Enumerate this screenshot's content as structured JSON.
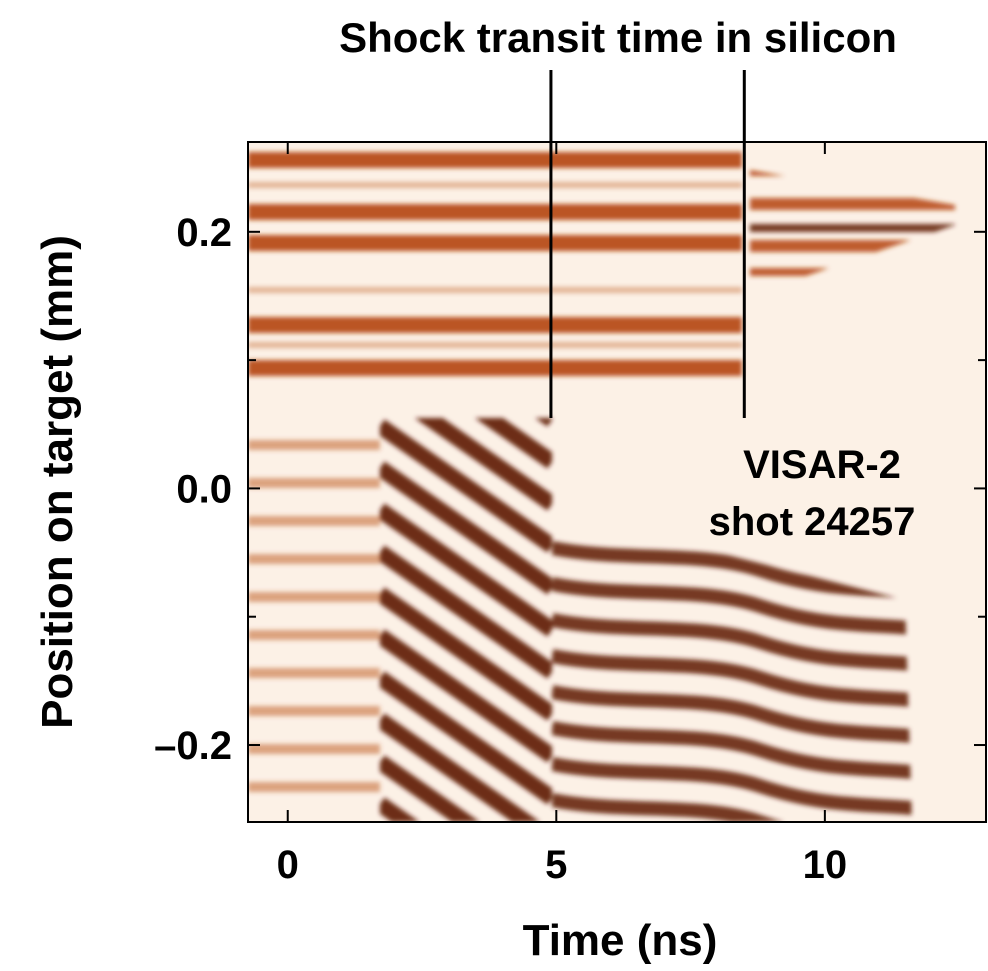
{
  "chart_data": {
    "type": "streak-image",
    "title": "Shock transit time in silicon",
    "xlabel": "Time (ns)",
    "ylabel": "Position on target (mm)",
    "annotation": [
      "VISAR-2",
      "shot 24257"
    ],
    "markers": [
      4.9,
      8.5
    ],
    "xlim": [
      -0.74,
      13
    ],
    "xticks": [
      0,
      5,
      10
    ],
    "ylim": [
      -0.26,
      0.27
    ],
    "yticks": [
      {
        "value": -0.2,
        "label": "–0.2"
      },
      {
        "value": 0,
        "label": "0.0"
      },
      0.2
    ],
    "yminor": [
      -0.1,
      0.1
    ],
    "color": "#b4440c"
  }
}
